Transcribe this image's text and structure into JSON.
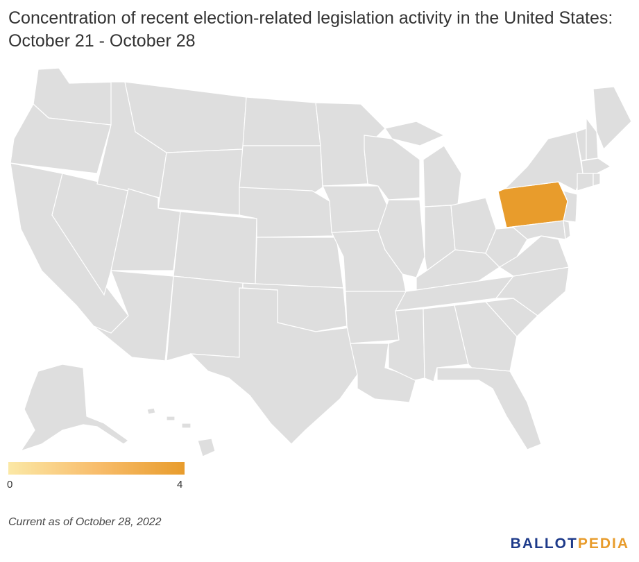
{
  "title": "Concentration of recent election-related legislation activity in the United States: October 21 - October 28",
  "legend": {
    "min": "0",
    "max": "4",
    "color_low": "#fbe8a6",
    "color_high": "#e89c2c",
    "color_none": "#dedede"
  },
  "highlighted": [
    {
      "state": "Pennsylvania",
      "value": 4
    }
  ],
  "footer": "Current as of October 28, 2022",
  "brand": {
    "part1": "BALLOT",
    "part2": "PEDIA"
  }
}
